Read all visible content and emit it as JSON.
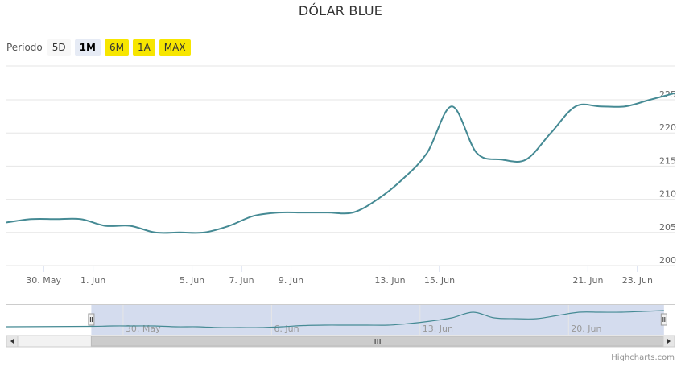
{
  "title": "DÓLAR BLUE",
  "range_selector": {
    "label": "Período",
    "buttons": [
      {
        "label": "5D",
        "state": "plain"
      },
      {
        "label": "1M",
        "state": "active"
      },
      {
        "label": "6M",
        "state": "yellow"
      },
      {
        "label": "1A",
        "state": "yellow"
      },
      {
        "label": "MAX",
        "state": "yellow"
      }
    ]
  },
  "credits": "Highcharts.com",
  "colors": {
    "line": "#458a94",
    "navigator_mask": "#ccd6eb",
    "grid": "#e6e6e6",
    "button_yellow": "#f7e600",
    "button_active": "#e6ebf5"
  },
  "chart_data": {
    "type": "line",
    "title": "DÓLAR BLUE",
    "xlabel": "",
    "ylabel": "",
    "ylim": [
      200,
      225
    ],
    "grid": true,
    "y_ticks": [
      "200",
      "205",
      "210",
      "215",
      "220",
      "225"
    ],
    "x_ticks": [
      {
        "label": "30. May",
        "day": 30
      },
      {
        "label": "1. Jun",
        "day": 32
      },
      {
        "label": "5. Jun",
        "day": 36
      },
      {
        "label": "7. Jun",
        "day": 38
      },
      {
        "label": "9. Jun",
        "day": 40
      },
      {
        "label": "13. Jun",
        "day": 44
      },
      {
        "label": "15. Jun",
        "day": 46
      },
      {
        "label": "21. Jun",
        "day": 52
      },
      {
        "label": "23. Jun",
        "day": 54
      }
    ],
    "series": [
      {
        "x": [
          28.5,
          29.5,
          30.5,
          31.5,
          32.5,
          33.5,
          34.5,
          35.5,
          36.5,
          37.5,
          38.5,
          39.5,
          40.5,
          41.5,
          42.5,
          43.5,
          44.5,
          45.5,
          46.5,
          47.5,
          48.5,
          49.5,
          50.5,
          51.5,
          52.5,
          53.5,
          54.5,
          55.5
        ],
        "values": [
          206.5,
          207,
          207,
          207,
          206,
          206,
          205,
          205,
          205,
          206,
          207.5,
          208,
          208,
          208,
          208,
          210,
          213,
          217,
          224,
          217,
          216,
          216,
          220,
          224,
          224,
          224,
          225,
          226
        ]
      }
    ],
    "navigator": {
      "x_ticks": [
        {
          "label": "30. May",
          "day": 30
        },
        {
          "label": "6. Jun",
          "day": 37
        },
        {
          "label": "13. Jun",
          "day": 44
        },
        {
          "label": "20. Jun",
          "day": 51
        }
      ],
      "selected_range_days": [
        28.5,
        55.5
      ]
    }
  }
}
